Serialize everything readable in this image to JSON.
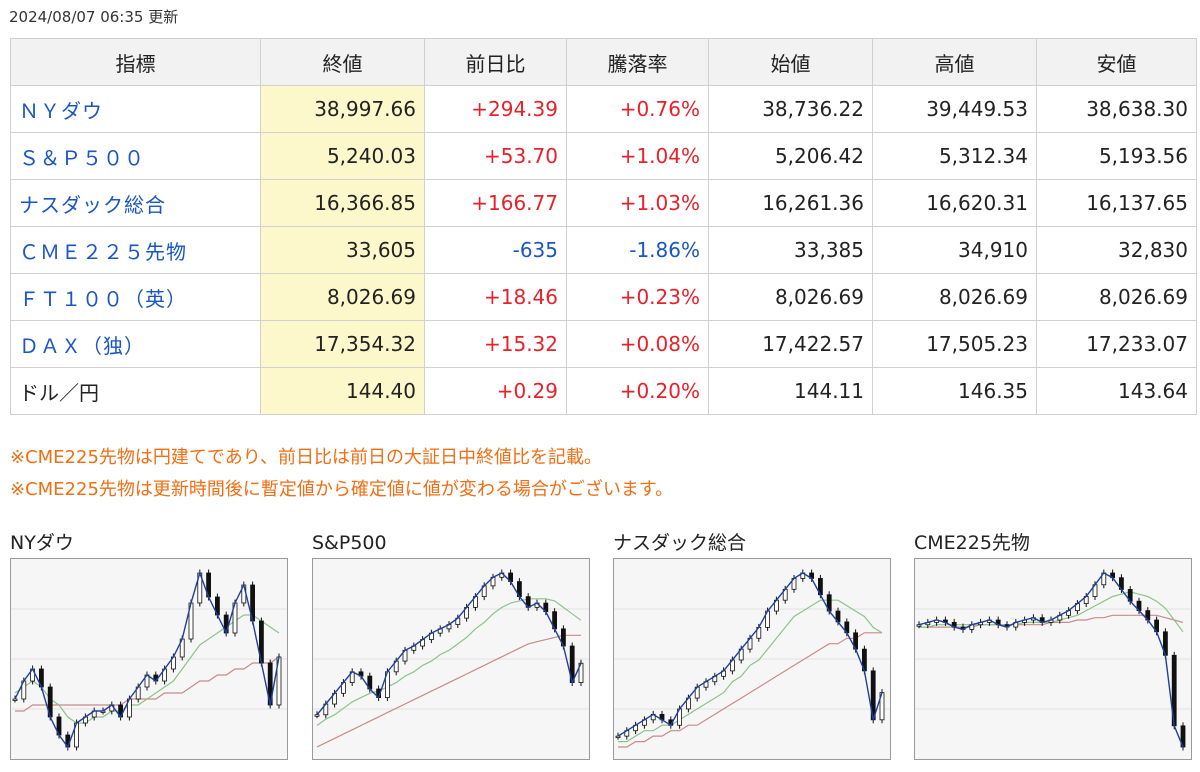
{
  "updated": "2024/08/07 06:35 更新",
  "table": {
    "headers": [
      "指標",
      "終値",
      "前日比",
      "騰落率",
      "始値",
      "高値",
      "安値"
    ],
    "rows": [
      {
        "name": "ＮＹダウ",
        "link": true,
        "close": "38,997.66",
        "change": "+294.39",
        "rate": "+0.76%",
        "dir": "up",
        "open": "38,736.22",
        "high": "39,449.53",
        "low": "38,638.30"
      },
      {
        "name": "Ｓ＆Ｐ５００",
        "link": true,
        "close": "5,240.03",
        "change": "+53.70",
        "rate": "+1.04%",
        "dir": "up",
        "open": "5,206.42",
        "high": "5,312.34",
        "low": "5,193.56"
      },
      {
        "name": "ナスダック総合",
        "link": true,
        "close": "16,366.85",
        "change": "+166.77",
        "rate": "+1.03%",
        "dir": "up",
        "open": "16,261.36",
        "high": "16,620.31",
        "low": "16,137.65"
      },
      {
        "name": "ＣＭＥ２２５先物",
        "link": true,
        "close": "33,605",
        "change": "-635",
        "rate": "-1.86%",
        "dir": "down",
        "open": "33,385",
        "high": "34,910",
        "low": "32,830"
      },
      {
        "name": "ＦＴ１００（英）",
        "link": true,
        "close": "8,026.69",
        "change": "+18.46",
        "rate": "+0.23%",
        "dir": "up",
        "open": "8,026.69",
        "high": "8,026.69",
        "low": "8,026.69"
      },
      {
        "name": "ＤＡＸ（独）",
        "link": true,
        "close": "17,354.32",
        "change": "+15.32",
        "rate": "+0.08%",
        "dir": "up",
        "open": "17,422.57",
        "high": "17,505.23",
        "low": "17,233.07"
      },
      {
        "name": "ドル／円",
        "link": false,
        "close": "144.40",
        "change": "+0.29",
        "rate": "+0.20%",
        "dir": "up",
        "open": "144.11",
        "high": "146.35",
        "low": "143.64"
      }
    ]
  },
  "notes": [
    "※CME225先物は円建てであり、前日比は前日の大証日中終値比を記載。",
    "※CME225先物は更新時間後に暫定値から確定値に値が変わる場合がございます。"
  ],
  "colors": {
    "up": "#e8202a",
    "down": "#1a56c2",
    "ma_short": "#1f3f9e",
    "ma_mid": "#8cc48a",
    "ma_long": "#c98a8a"
  },
  "chart_data": [
    {
      "type": "line",
      "title": "NYダウ",
      "close": [
        38.3,
        38.6,
        38.8,
        38.5,
        38.0,
        37.7,
        37.5,
        37.9,
        38.0,
        38.1,
        38.1,
        38.2,
        38.0,
        38.3,
        38.5,
        38.7,
        38.6,
        38.8,
        39.0,
        39.3,
        39.9,
        40.4,
        40.0,
        39.7,
        39.4,
        39.9,
        40.2,
        39.6,
        38.9,
        38.2,
        39.0
      ],
      "ma_mid": [
        38.4,
        38.5,
        38.6,
        38.5,
        38.3,
        38.2,
        38.0,
        37.9,
        37.9,
        38.0,
        38.0,
        38.1,
        38.1,
        38.2,
        38.2,
        38.3,
        38.4,
        38.5,
        38.6,
        38.8,
        39.0,
        39.2,
        39.3,
        39.4,
        39.5,
        39.6,
        39.7,
        39.7,
        39.6,
        39.5,
        39.4
      ],
      "ma_long": [
        38.1,
        38.1,
        38.2,
        38.2,
        38.2,
        38.2,
        38.2,
        38.2,
        38.2,
        38.2,
        38.2,
        38.2,
        38.2,
        38.3,
        38.3,
        38.3,
        38.3,
        38.4,
        38.4,
        38.4,
        38.5,
        38.6,
        38.6,
        38.7,
        38.7,
        38.8,
        38.8,
        38.9,
        38.9,
        38.9,
        39.0
      ]
    },
    {
      "type": "line",
      "title": "S&P500",
      "close": [
        5.0,
        5.05,
        5.1,
        5.15,
        5.2,
        5.18,
        5.12,
        5.08,
        5.2,
        5.25,
        5.3,
        5.32,
        5.35,
        5.38,
        5.4,
        5.42,
        5.45,
        5.5,
        5.55,
        5.6,
        5.64,
        5.66,
        5.62,
        5.55,
        5.5,
        5.52,
        5.48,
        5.4,
        5.32,
        5.15,
        5.24
      ],
      "ma_mid": [
        4.95,
        4.98,
        5.0,
        5.03,
        5.06,
        5.08,
        5.1,
        5.11,
        5.13,
        5.15,
        5.18,
        5.2,
        5.23,
        5.25,
        5.28,
        5.3,
        5.33,
        5.36,
        5.4,
        5.43,
        5.47,
        5.5,
        5.52,
        5.53,
        5.54,
        5.54,
        5.54,
        5.53,
        5.5,
        5.47,
        5.44
      ],
      "ma_long": [
        4.85,
        4.87,
        4.89,
        4.91,
        4.93,
        4.95,
        4.97,
        4.99,
        5.01,
        5.03,
        5.05,
        5.07,
        5.09,
        5.11,
        5.13,
        5.15,
        5.17,
        5.19,
        5.21,
        5.23,
        5.25,
        5.27,
        5.29,
        5.31,
        5.33,
        5.34,
        5.35,
        5.36,
        5.37,
        5.37,
        5.37
      ]
    },
    {
      "type": "line",
      "title": "ナスダック総合",
      "close": [
        15.6,
        15.7,
        15.8,
        15.9,
        16.0,
        15.9,
        15.8,
        16.1,
        16.3,
        16.5,
        16.6,
        16.7,
        16.8,
        17.0,
        17.2,
        17.4,
        17.6,
        17.9,
        18.1,
        18.3,
        18.5,
        18.6,
        18.5,
        18.2,
        17.9,
        17.7,
        17.5,
        17.2,
        16.8,
        15.9,
        16.4
      ],
      "ma_mid": [
        15.5,
        15.5,
        15.6,
        15.7,
        15.7,
        15.8,
        15.8,
        15.9,
        16.0,
        16.1,
        16.2,
        16.3,
        16.4,
        16.6,
        16.7,
        16.9,
        17.0,
        17.2,
        17.4,
        17.6,
        17.8,
        17.9,
        18.0,
        18.1,
        18.1,
        18.1,
        18.0,
        17.9,
        17.8,
        17.6,
        17.5
      ],
      "ma_long": [
        15.4,
        15.4,
        15.5,
        15.5,
        15.6,
        15.6,
        15.7,
        15.7,
        15.8,
        15.8,
        15.9,
        16.0,
        16.1,
        16.2,
        16.3,
        16.4,
        16.5,
        16.6,
        16.7,
        16.8,
        16.9,
        17.0,
        17.1,
        17.2,
        17.3,
        17.3,
        17.4,
        17.4,
        17.5,
        17.5,
        17.5
      ]
    },
    {
      "type": "line",
      "title": "CME225先物",
      "close": [
        38.8,
        38.9,
        39.0,
        38.9,
        38.7,
        38.6,
        38.8,
        38.9,
        39.0,
        38.8,
        38.7,
        38.9,
        39.0,
        39.1,
        38.9,
        39.0,
        39.2,
        39.4,
        39.7,
        40.0,
        40.5,
        41.0,
        40.8,
        40.3,
        39.8,
        39.4,
        39.0,
        38.5,
        37.5,
        34.5,
        33.6
      ],
      "ma_mid": [
        38.7,
        38.7,
        38.8,
        38.8,
        38.8,
        38.8,
        38.8,
        38.8,
        38.8,
        38.8,
        38.8,
        38.8,
        38.9,
        38.9,
        38.9,
        38.9,
        39.0,
        39.1,
        39.2,
        39.4,
        39.6,
        39.8,
        40.0,
        40.1,
        40.2,
        40.1,
        40.0,
        39.8,
        39.5,
        39.0,
        38.5
      ],
      "ma_long": [
        38.7,
        38.7,
        38.7,
        38.7,
        38.7,
        38.7,
        38.7,
        38.8,
        38.8,
        38.8,
        38.8,
        38.8,
        38.8,
        38.8,
        38.8,
        38.9,
        38.9,
        38.9,
        39.0,
        39.0,
        39.1,
        39.1,
        39.2,
        39.2,
        39.2,
        39.2,
        39.2,
        39.2,
        39.1,
        39.0,
        38.9
      ]
    }
  ]
}
